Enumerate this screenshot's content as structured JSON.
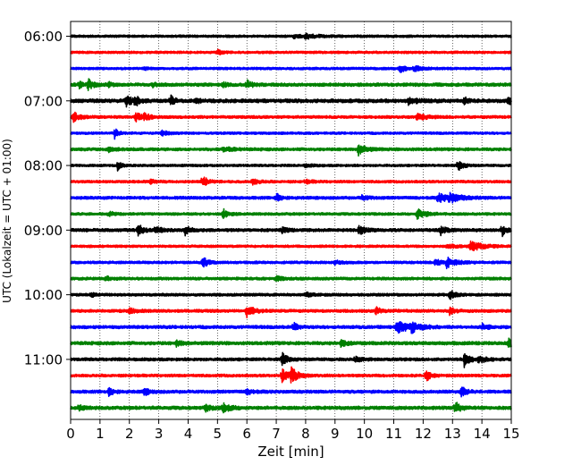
{
  "chart_data": {
    "type": "line",
    "chart_kind": "helicorder (seismogram drum plot)",
    "xlabel": "Zeit  [min]",
    "ylabel": "UTC (Lokalzeit = UTC + 01:00)",
    "xlim": [
      0,
      15
    ],
    "x_ticks": [
      "0",
      "1",
      "2",
      "3",
      "4",
      "5",
      "6",
      "7",
      "8",
      "9",
      "10",
      "11",
      "12",
      "13",
      "14",
      "15"
    ],
    "y_tick_labels": [
      "06:00",
      "07:00",
      "08:00",
      "09:00",
      "10:00",
      "11:00"
    ],
    "minutes_per_line": 15,
    "grid": "vertical dotted lines at every minute",
    "colors": [
      "#000000",
      "#ff0000",
      "#0000ff",
      "#008000"
    ],
    "rows": [
      {
        "start": "06:00",
        "color": "#000000",
        "base": 1.3,
        "events": [
          {
            "t": 8.0,
            "a": 2.2,
            "d": 0.4
          },
          {
            "t": 7.6,
            "a": 1.6,
            "d": 0.3
          }
        ]
      },
      {
        "start": "06:15",
        "color": "#ff0000",
        "base": 1.3,
        "events": [
          {
            "t": 5.0,
            "a": 2.6,
            "d": 0.15
          }
        ]
      },
      {
        "start": "06:30",
        "color": "#0000ff",
        "base": 1.3,
        "events": [
          {
            "t": 11.2,
            "a": 4.0,
            "d": 0.2
          },
          {
            "t": 11.7,
            "a": 2.4,
            "d": 0.25
          },
          {
            "t": 2.5,
            "a": 1.5,
            "d": 0.1
          }
        ]
      },
      {
        "start": "06:45",
        "color": "#008000",
        "base": 1.8,
        "events": [
          {
            "t": 0.6,
            "a": 5.5,
            "d": 0.15
          },
          {
            "t": 0.3,
            "a": 3.0,
            "d": 0.1
          },
          {
            "t": 1.3,
            "a": 2.5,
            "d": 0.1
          },
          {
            "t": 5.2,
            "a": 2.5,
            "d": 0.1
          },
          {
            "t": 6.0,
            "a": 4.5,
            "d": 0.15
          },
          {
            "t": 2.8,
            "a": 2.0,
            "d": 0.1
          }
        ]
      },
      {
        "start": "07:00",
        "color": "#000000",
        "base": 2.0,
        "events": [
          {
            "t": 1.9,
            "a": 6.5,
            "d": 0.15
          },
          {
            "t": 2.2,
            "a": 4.5,
            "d": 0.15
          },
          {
            "t": 3.4,
            "a": 6.0,
            "d": 0.12
          },
          {
            "t": 4.3,
            "a": 4.0,
            "d": 0.1
          },
          {
            "t": 11.5,
            "a": 3.5,
            "d": 0.3
          },
          {
            "t": 13.4,
            "a": 4.0,
            "d": 0.1
          },
          {
            "t": 14.9,
            "a": 4.0,
            "d": 0.1
          }
        ]
      },
      {
        "start": "07:15",
        "color": "#ff0000",
        "base": 1.5,
        "events": [
          {
            "t": 0.1,
            "a": 5.0,
            "d": 0.2
          },
          {
            "t": 2.2,
            "a": 5.0,
            "d": 0.2
          },
          {
            "t": 2.5,
            "a": 3.0,
            "d": 0.2
          },
          {
            "t": 11.8,
            "a": 4.0,
            "d": 0.25
          }
        ]
      },
      {
        "start": "07:30",
        "color": "#0000ff",
        "base": 1.3,
        "events": [
          {
            "t": 1.5,
            "a": 5.5,
            "d": 0.12
          },
          {
            "t": 3.1,
            "a": 2.5,
            "d": 0.2
          }
        ]
      },
      {
        "start": "07:45",
        "color": "#008000",
        "base": 1.6,
        "events": [
          {
            "t": 9.8,
            "a": 7.0,
            "d": 0.2
          },
          {
            "t": 5.2,
            "a": 2.5,
            "d": 0.3
          },
          {
            "t": 1.3,
            "a": 2.0,
            "d": 0.2
          }
        ]
      },
      {
        "start": "08:00",
        "color": "#000000",
        "base": 1.3,
        "events": [
          {
            "t": 1.6,
            "a": 5.0,
            "d": 0.12
          },
          {
            "t": 13.2,
            "a": 5.5,
            "d": 0.15
          },
          {
            "t": 8.0,
            "a": 1.5,
            "d": 0.2
          }
        ]
      },
      {
        "start": "08:15",
        "color": "#ff0000",
        "base": 1.4,
        "events": [
          {
            "t": 4.5,
            "a": 6.0,
            "d": 0.15
          },
          {
            "t": 6.2,
            "a": 3.0,
            "d": 0.2
          },
          {
            "t": 2.7,
            "a": 2.0,
            "d": 0.2
          },
          {
            "t": 8.0,
            "a": 1.8,
            "d": 0.2
          }
        ]
      },
      {
        "start": "08:30",
        "color": "#0000ff",
        "base": 1.6,
        "events": [
          {
            "t": 7.0,
            "a": 5.0,
            "d": 0.12
          },
          {
            "t": 12.5,
            "a": 4.5,
            "d": 0.4
          },
          {
            "t": 12.9,
            "a": 4.0,
            "d": 0.3
          },
          {
            "t": 9.9,
            "a": 2.5,
            "d": 0.2
          }
        ]
      },
      {
        "start": "08:45",
        "color": "#008000",
        "base": 1.4,
        "events": [
          {
            "t": 5.2,
            "a": 5.5,
            "d": 0.15
          },
          {
            "t": 11.8,
            "a": 6.0,
            "d": 0.25
          },
          {
            "t": 1.3,
            "a": 2.5,
            "d": 0.2
          }
        ]
      },
      {
        "start": "09:00",
        "color": "#000000",
        "base": 1.7,
        "events": [
          {
            "t": 2.3,
            "a": 6.5,
            "d": 0.15
          },
          {
            "t": 2.9,
            "a": 4.0,
            "d": 0.15
          },
          {
            "t": 3.9,
            "a": 5.0,
            "d": 0.15
          },
          {
            "t": 9.8,
            "a": 5.0,
            "d": 0.2
          },
          {
            "t": 12.6,
            "a": 5.0,
            "d": 0.15
          },
          {
            "t": 14.7,
            "a": 6.0,
            "d": 0.12
          },
          {
            "t": 7.2,
            "a": 2.5,
            "d": 0.2
          }
        ]
      },
      {
        "start": "09:15",
        "color": "#ff0000",
        "base": 1.3,
        "events": [
          {
            "t": 13.6,
            "a": 5.0,
            "d": 0.4
          },
          {
            "t": 12.8,
            "a": 2.0,
            "d": 0.3
          }
        ]
      },
      {
        "start": "09:30",
        "color": "#0000ff",
        "base": 1.4,
        "events": [
          {
            "t": 4.5,
            "a": 6.0,
            "d": 0.15
          },
          {
            "t": 12.4,
            "a": 3.5,
            "d": 0.2
          },
          {
            "t": 12.8,
            "a": 5.0,
            "d": 0.3
          },
          {
            "t": 9.0,
            "a": 2.0,
            "d": 0.2
          }
        ]
      },
      {
        "start": "09:45",
        "color": "#008000",
        "base": 1.5,
        "events": [
          {
            "t": 1.2,
            "a": 2.0,
            "d": 0.2
          },
          {
            "t": 7.0,
            "a": 2.0,
            "d": 0.2
          }
        ]
      },
      {
        "start": "10:00",
        "color": "#000000",
        "base": 1.5,
        "events": [
          {
            "t": 12.9,
            "a": 5.5,
            "d": 0.15
          },
          {
            "t": 0.7,
            "a": 2.5,
            "d": 0.1
          },
          {
            "t": 8.0,
            "a": 2.0,
            "d": 0.2
          }
        ]
      },
      {
        "start": "10:15",
        "color": "#ff0000",
        "base": 1.6,
        "events": [
          {
            "t": 6.0,
            "a": 6.5,
            "d": 0.2
          },
          {
            "t": 10.4,
            "a": 4.0,
            "d": 0.15
          },
          {
            "t": 12.9,
            "a": 4.0,
            "d": 0.15
          },
          {
            "t": 2.0,
            "a": 2.5,
            "d": 0.2
          }
        ]
      },
      {
        "start": "10:30",
        "color": "#0000ff",
        "base": 1.7,
        "events": [
          {
            "t": 11.1,
            "a": 7.5,
            "d": 0.3
          },
          {
            "t": 11.6,
            "a": 4.5,
            "d": 0.3
          },
          {
            "t": 7.6,
            "a": 4.0,
            "d": 0.12
          },
          {
            "t": 14.0,
            "a": 3.0,
            "d": 0.2
          }
        ]
      },
      {
        "start": "10:45",
        "color": "#008000",
        "base": 1.8,
        "events": [
          {
            "t": 14.9,
            "a": 5.0,
            "d": 0.15
          },
          {
            "t": 9.2,
            "a": 3.0,
            "d": 0.2
          },
          {
            "t": 3.6,
            "a": 3.0,
            "d": 0.2
          }
        ]
      },
      {
        "start": "11:00",
        "color": "#000000",
        "base": 1.6,
        "events": [
          {
            "t": 7.2,
            "a": 7.0,
            "d": 0.15
          },
          {
            "t": 13.4,
            "a": 8.0,
            "d": 0.15
          },
          {
            "t": 13.9,
            "a": 4.0,
            "d": 0.2
          },
          {
            "t": 9.7,
            "a": 2.5,
            "d": 0.2
          }
        ]
      },
      {
        "start": "11:15",
        "color": "#ff0000",
        "base": 1.5,
        "events": [
          {
            "t": 7.2,
            "a": 6.5,
            "d": 0.2
          },
          {
            "t": 7.5,
            "a": 8.0,
            "d": 0.2
          },
          {
            "t": 12.1,
            "a": 6.5,
            "d": 0.15
          }
        ]
      },
      {
        "start": "11:30",
        "color": "#0000ff",
        "base": 1.7,
        "events": [
          {
            "t": 1.3,
            "a": 5.0,
            "d": 0.12
          },
          {
            "t": 2.5,
            "a": 4.0,
            "d": 0.15
          },
          {
            "t": 13.3,
            "a": 5.5,
            "d": 0.15
          },
          {
            "t": 6.0,
            "a": 2.5,
            "d": 0.2
          }
        ]
      },
      {
        "start": "11:45",
        "color": "#008000",
        "base": 1.8,
        "events": [
          {
            "t": 5.2,
            "a": 6.0,
            "d": 0.2
          },
          {
            "t": 13.1,
            "a": 6.5,
            "d": 0.15
          },
          {
            "t": 4.6,
            "a": 3.0,
            "d": 0.2
          },
          {
            "t": 0.3,
            "a": 3.0,
            "d": 0.12
          }
        ]
      }
    ]
  }
}
